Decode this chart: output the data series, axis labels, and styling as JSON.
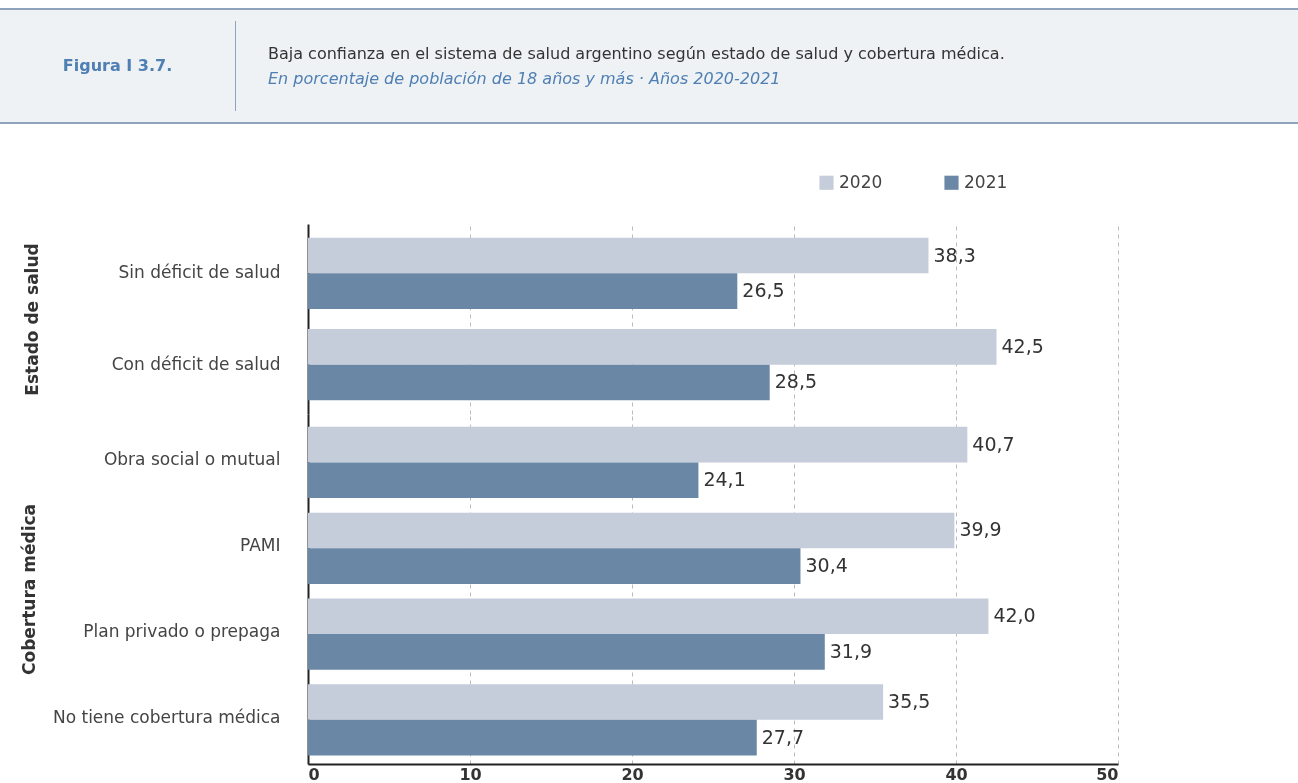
{
  "chart_data": [
    {
      "type": "bar",
      "orientation": "horizontal",
      "title": "Baja confianza en el sistema de salud argentino según estado de salud y cobertura médica.",
      "subtitle": "En porcentaje de población de 18 años y más · Años 2020-2021",
      "annotations": [
        "Figura I 3.7."
      ],
      "ylabel": "Estado de salud",
      "categories": [
        "Sin déficit de salud",
        "Con déficit de salud"
      ],
      "series": [
        {
          "name": "2020",
          "color": "#c5ccda",
          "values": [
            38.3,
            42.5
          ],
          "value_labels": [
            "38,3",
            "42,5"
          ]
        },
        {
          "name": "2021",
          "color": "#6a87a6",
          "values": [
            26.5,
            28.5
          ],
          "value_labels": [
            "26,5",
            "28,5"
          ]
        }
      ],
      "xlim": [
        0,
        50
      ],
      "xticks": [
        0,
        10,
        20,
        30,
        40,
        50
      ],
      "grid": "x",
      "legend": "top right",
      "tick_labels": "y"
    },
    {
      "type": "bar",
      "orientation": "horizontal",
      "ylabel": "Cobertura médica",
      "categories": [
        "Obra social o mutual",
        "PAMI",
        "Plan privado o prepaga",
        "No tiene cobertura médica"
      ],
      "series": [
        {
          "name": "2020",
          "color": "#c5ccda",
          "values": [
            40.7,
            39.9,
            42.0,
            35.5
          ],
          "value_labels": [
            "40,7",
            "39,9",
            "42,0",
            "35,5"
          ]
        },
        {
          "name": "2021",
          "color": "#6a87a6",
          "values": [
            24.1,
            30.4,
            31.9,
            27.7
          ],
          "value_labels": [
            "24,1",
            "30,4",
            "31,9",
            "27,7"
          ]
        }
      ],
      "xlim": [
        0,
        50
      ],
      "xticks": [
        0,
        10,
        20,
        30,
        40,
        50
      ],
      "grid": "x",
      "legend": false
    }
  ]
}
